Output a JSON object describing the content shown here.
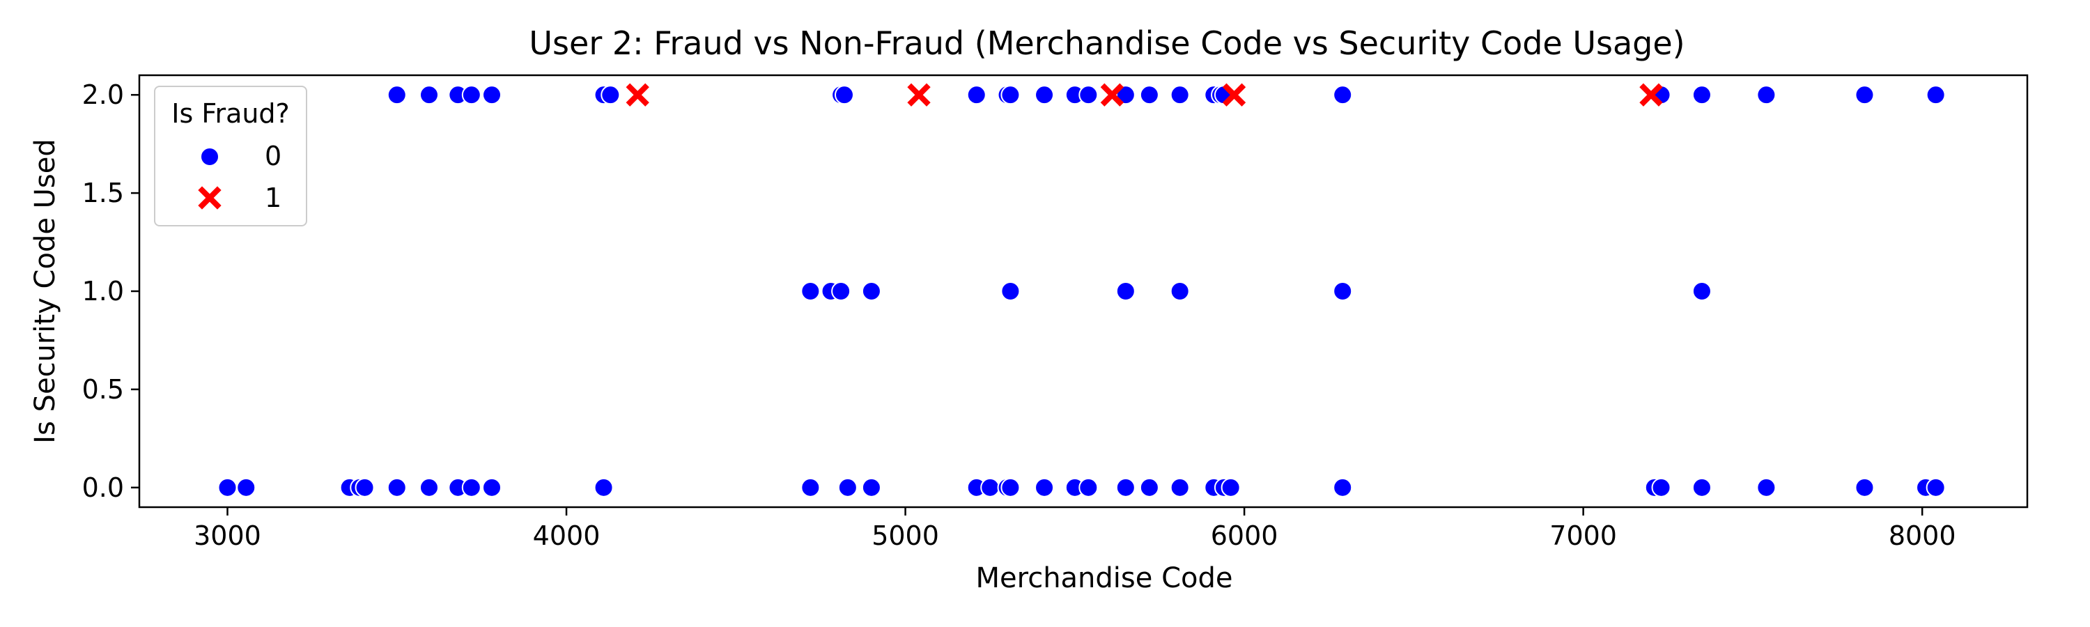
{
  "chart_data": {
    "type": "scatter",
    "title": "User 2: Fraud vs Non-Fraud (Merchandise Code vs Security Code Usage)",
    "xlabel": "Merchandise Code",
    "ylabel": "Is Security Code Used",
    "xlim": [
      2740,
      8310
    ],
    "ylim": [
      -0.1,
      2.1
    ],
    "xticks": [
      3000,
      4000,
      5000,
      6000,
      7000,
      8000
    ],
    "yticks": [
      0.0,
      0.5,
      1.0,
      1.5,
      2.0
    ],
    "xtick_labels": [
      "3000",
      "4000",
      "5000",
      "6000",
      "7000",
      "8000"
    ],
    "ytick_labels": [
      "0.0",
      "0.5",
      "1.0",
      "1.5",
      "2.0"
    ],
    "legend": {
      "title": "Is Fraud?",
      "position": "upper-left",
      "entries": [
        {
          "label": "0",
          "marker": "circle",
          "color": "#0000ff"
        },
        {
          "label": "1",
          "marker": "x",
          "color": "#ff0000"
        }
      ]
    },
    "grid": false,
    "series": [
      {
        "name": "0",
        "color": "#0000ff",
        "marker": "circle",
        "points": [
          [
            3000,
            0
          ],
          [
            3055,
            0
          ],
          [
            3360,
            0
          ],
          [
            3390,
            0
          ],
          [
            3405,
            0
          ],
          [
            3500,
            0
          ],
          [
            3595,
            0
          ],
          [
            3680,
            0
          ],
          [
            3720,
            0
          ],
          [
            3780,
            0
          ],
          [
            4110,
            0
          ],
          [
            4720,
            0
          ],
          [
            4830,
            0
          ],
          [
            4900,
            0
          ],
          [
            5210,
            0
          ],
          [
            5250,
            0
          ],
          [
            5300,
            0
          ],
          [
            5310,
            0
          ],
          [
            5410,
            0
          ],
          [
            5500,
            0
          ],
          [
            5540,
            0
          ],
          [
            5650,
            0
          ],
          [
            5720,
            0
          ],
          [
            5810,
            0
          ],
          [
            5910,
            0
          ],
          [
            5940,
            0
          ],
          [
            5960,
            0
          ],
          [
            6290,
            0
          ],
          [
            7210,
            0
          ],
          [
            7230,
            0
          ],
          [
            7350,
            0
          ],
          [
            7540,
            0
          ],
          [
            7830,
            0
          ],
          [
            8010,
            0
          ],
          [
            8040,
            0
          ],
          [
            4720,
            1
          ],
          [
            4780,
            1
          ],
          [
            4810,
            1
          ],
          [
            4900,
            1
          ],
          [
            5310,
            1
          ],
          [
            5650,
            1
          ],
          [
            5810,
            1
          ],
          [
            6290,
            1
          ],
          [
            7350,
            1
          ],
          [
            3500,
            2
          ],
          [
            3595,
            2
          ],
          [
            3680,
            2
          ],
          [
            3720,
            2
          ],
          [
            3780,
            2
          ],
          [
            4110,
            2
          ],
          [
            4130,
            2
          ],
          [
            4810,
            2
          ],
          [
            4820,
            2
          ],
          [
            5210,
            2
          ],
          [
            5300,
            2
          ],
          [
            5310,
            2
          ],
          [
            5410,
            2
          ],
          [
            5500,
            2
          ],
          [
            5540,
            2
          ],
          [
            5650,
            2
          ],
          [
            5720,
            2
          ],
          [
            5810,
            2
          ],
          [
            5910,
            2
          ],
          [
            5930,
            2
          ],
          [
            5940,
            2
          ],
          [
            6290,
            2
          ],
          [
            7230,
            2
          ],
          [
            7350,
            2
          ],
          [
            7540,
            2
          ],
          [
            7830,
            2
          ],
          [
            8040,
            2
          ]
        ]
      },
      {
        "name": "1",
        "color": "#ff0000",
        "marker": "x",
        "points": [
          [
            4210,
            2
          ],
          [
            5040,
            2
          ],
          [
            5610,
            2
          ],
          [
            5970,
            2
          ],
          [
            7200,
            2
          ]
        ]
      }
    ]
  }
}
